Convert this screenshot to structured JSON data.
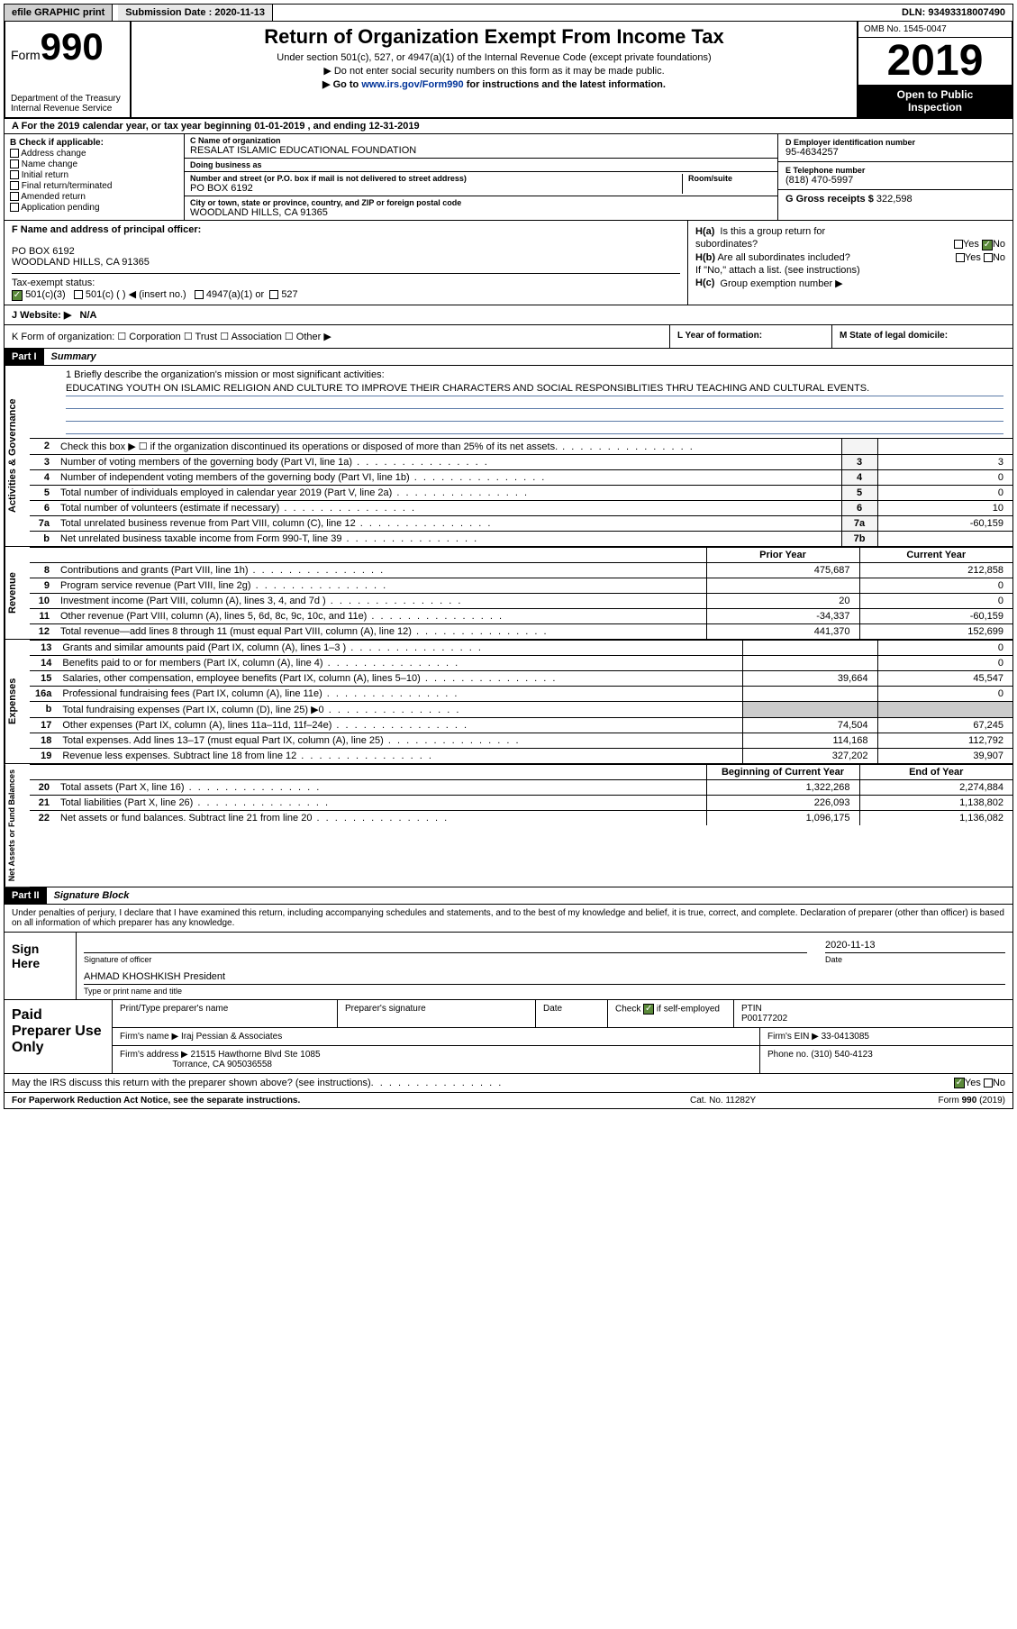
{
  "topbar": {
    "efile": "efile GRAPHIC print",
    "subdate_label": "Submission Date :",
    "subdate": "2020-11-13",
    "dln_label": "DLN:",
    "dln": "93493318007490"
  },
  "header": {
    "form_word": "Form",
    "form_num": "990",
    "dept": "Department of the Treasury\nInternal Revenue Service",
    "title": "Return of Organization Exempt From Income Tax",
    "sub1": "Under section 501(c), 527, or 4947(a)(1) of the Internal Revenue Code (except private foundations)",
    "sub2": "▶ Do not enter social security numbers on this form as it may be made public.",
    "sub3_pre": "▶ Go to ",
    "sub3_link": "www.irs.gov/Form990",
    "sub3_post": " for instructions and the latest information.",
    "omb": "OMB No. 1545-0047",
    "year": "2019",
    "open1": "Open to Public",
    "open2": "Inspection"
  },
  "period": "A  For the 2019 calendar year, or tax year beginning 01-01-2019    , and ending 12-31-2019",
  "boxB": {
    "label": "B Check if applicable:",
    "items": [
      "Address change",
      "Name change",
      "Initial return",
      "Final return/terminated",
      "Amended return",
      "Application pending"
    ]
  },
  "boxC": {
    "name_label": "C Name of organization",
    "name": "RESALAT ISLAMIC EDUCATIONAL FOUNDATION",
    "dba_label": "Doing business as",
    "dba": "",
    "addr_label": "Number and street (or P.O. box if mail is not delivered to street address)",
    "room_label": "Room/suite",
    "addr": "PO BOX 6192",
    "city_label": "City or town, state or province, country, and ZIP or foreign postal code",
    "city": "WOODLAND HILLS, CA  91365"
  },
  "boxD": {
    "label": "D Employer identification number",
    "val": "95-4634257"
  },
  "boxE": {
    "label": "E Telephone number",
    "val": "(818) 470-5997"
  },
  "boxG": {
    "label": "G Gross receipts $",
    "val": "322,598"
  },
  "boxF": {
    "label": "F Name and address of principal officer:",
    "l1": "PO BOX 6192",
    "l2": "WOODLAND HILLS, CA  91365"
  },
  "boxH": {
    "ha": "Is this a group return for",
    "ha2": "subordinates?",
    "hb": "Are all subordinates included?",
    "hnote": "If \"No,\" attach a list. (see instructions)",
    "hc": "Group exemption number ▶",
    "yes": "Yes",
    "no": "No"
  },
  "taxrow": {
    "label": "Tax-exempt status:",
    "c3": "501(c)(3)",
    "c": "501(c) (  ) ◀ (insert no.)",
    "a1": "4947(a)(1) or",
    "s527": "527"
  },
  "website": {
    "label": "J   Website: ▶",
    "val": "N/A"
  },
  "rowK": "K Form of organization:   ☐ Corporation   ☐ Trust   ☐ Association   ☐ Other ▶",
  "rowL": "L Year of formation:",
  "rowM": "M State of legal domicile:",
  "part1": {
    "hdr": "Part I",
    "title": "Summary"
  },
  "mission": {
    "prompt": "1  Briefly describe the organization's mission or most significant activities:",
    "text": "EDUCATING YOUTH ON ISLAMIC RELIGION AND CULTURE TO IMPROVE THEIR CHARACTERS AND SOCIAL RESPONSIBLITIES THRU TEACHING AND CULTURAL EVENTS."
  },
  "lines_ag": [
    {
      "n": "2",
      "d": "Check this box ▶ ☐  if the organization discontinued its operations or disposed of more than 25% of its net assets.",
      "b": "",
      "v": ""
    },
    {
      "n": "3",
      "d": "Number of voting members of the governing body (Part VI, line 1a)",
      "b": "3",
      "v": "3"
    },
    {
      "n": "4",
      "d": "Number of independent voting members of the governing body (Part VI, line 1b)",
      "b": "4",
      "v": "0"
    },
    {
      "n": "5",
      "d": "Total number of individuals employed in calendar year 2019 (Part V, line 2a)",
      "b": "5",
      "v": "0"
    },
    {
      "n": "6",
      "d": "Total number of volunteers (estimate if necessary)",
      "b": "6",
      "v": "10"
    },
    {
      "n": "7a",
      "d": "Total unrelated business revenue from Part VIII, column (C), line 12",
      "b": "7a",
      "v": "-60,159"
    },
    {
      "n": "b",
      "d": "Net unrelated business taxable income from Form 990-T, line 39",
      "b": "7b",
      "v": ""
    }
  ],
  "col_hdr": {
    "py": "Prior Year",
    "cy": "Current Year"
  },
  "lines_rev": [
    {
      "n": "8",
      "d": "Contributions and grants (Part VIII, line 1h)",
      "py": "475,687",
      "cy": "212,858"
    },
    {
      "n": "9",
      "d": "Program service revenue (Part VIII, line 2g)",
      "py": "",
      "cy": "0"
    },
    {
      "n": "10",
      "d": "Investment income (Part VIII, column (A), lines 3, 4, and 7d )",
      "py": "20",
      "cy": "0"
    },
    {
      "n": "11",
      "d": "Other revenue (Part VIII, column (A), lines 5, 6d, 8c, 9c, 10c, and 11e)",
      "py": "-34,337",
      "cy": "-60,159"
    },
    {
      "n": "12",
      "d": "Total revenue—add lines 8 through 11 (must equal Part VIII, column (A), line 12)",
      "py": "441,370",
      "cy": "152,699"
    }
  ],
  "lines_exp": [
    {
      "n": "13",
      "d": "Grants and similar amounts paid (Part IX, column (A), lines 1–3 )",
      "py": "",
      "cy": "0"
    },
    {
      "n": "14",
      "d": "Benefits paid to or for members (Part IX, column (A), line 4)",
      "py": "",
      "cy": "0"
    },
    {
      "n": "15",
      "d": "Salaries, other compensation, employee benefits (Part IX, column (A), lines 5–10)",
      "py": "39,664",
      "cy": "45,547"
    },
    {
      "n": "16a",
      "d": "Professional fundraising fees (Part IX, column (A), line 11e)",
      "py": "",
      "cy": "0"
    },
    {
      "n": "b",
      "d": "Total fundraising expenses (Part IX, column (D), line 25) ▶0",
      "py": "shade",
      "cy": "shade"
    },
    {
      "n": "17",
      "d": "Other expenses (Part IX, column (A), lines 11a–11d, 11f–24e)",
      "py": "74,504",
      "cy": "67,245"
    },
    {
      "n": "18",
      "d": "Total expenses. Add lines 13–17 (must equal Part IX, column (A), line 25)",
      "py": "114,168",
      "cy": "112,792"
    },
    {
      "n": "19",
      "d": "Revenue less expenses. Subtract line 18 from line 12",
      "py": "327,202",
      "cy": "39,907"
    }
  ],
  "col_hdr2": {
    "py": "Beginning of Current Year",
    "cy": "End of Year"
  },
  "lines_net": [
    {
      "n": "20",
      "d": "Total assets (Part X, line 16)",
      "py": "1,322,268",
      "cy": "2,274,884"
    },
    {
      "n": "21",
      "d": "Total liabilities (Part X, line 26)",
      "py": "226,093",
      "cy": "1,138,802"
    },
    {
      "n": "22",
      "d": "Net assets or fund balances. Subtract line 21 from line 20",
      "py": "1,096,175",
      "cy": "1,136,082"
    }
  ],
  "vlabels": {
    "ag": "Activities & Governance",
    "rev": "Revenue",
    "exp": "Expenses",
    "net": "Net Assets or Fund Balances"
  },
  "part2": {
    "hdr": "Part II",
    "title": "Signature Block"
  },
  "sig": {
    "decl": "Under penalties of perjury, I declare that I have examined this return, including accompanying schedules and statements, and to the best of my knowledge and belief, it is true, correct, and complete. Declaration of preparer (other than officer) is based on all information of which preparer has any knowledge.",
    "sign_here": "Sign Here",
    "sig_officer": "Signature of officer",
    "date_lbl": "Date",
    "date_val": "2020-11-13",
    "name": "AHMAD KHOSHKISH  President",
    "type_lbl": "Type or print name and title"
  },
  "paid": {
    "title": "Paid Preparer Use Only",
    "h1": "Print/Type preparer's name",
    "h2": "Preparer's signature",
    "h3": "Date",
    "h4_pre": "Check",
    "h4_post": "if self-employed",
    "h5": "PTIN",
    "ptin": "P00177202",
    "firm_lbl": "Firm's name  ▶",
    "firm": "Iraj Pessian & Associates",
    "ein_lbl": "Firm's EIN ▶",
    "ein": "33-0413085",
    "addr_lbl": "Firm's address ▶",
    "addr1": "21515 Hawthorne Blvd Ste 1085",
    "addr2": "Torrance, CA  905036558",
    "phone_lbl": "Phone no.",
    "phone": "(310) 540-4123"
  },
  "discuss": "May the IRS discuss this return with the preparer shown above? (see instructions)",
  "footer": {
    "l": "For Paperwork Reduction Act Notice, see the separate instructions.",
    "c": "Cat. No. 11282Y",
    "r": "Form 990 (2019)"
  }
}
